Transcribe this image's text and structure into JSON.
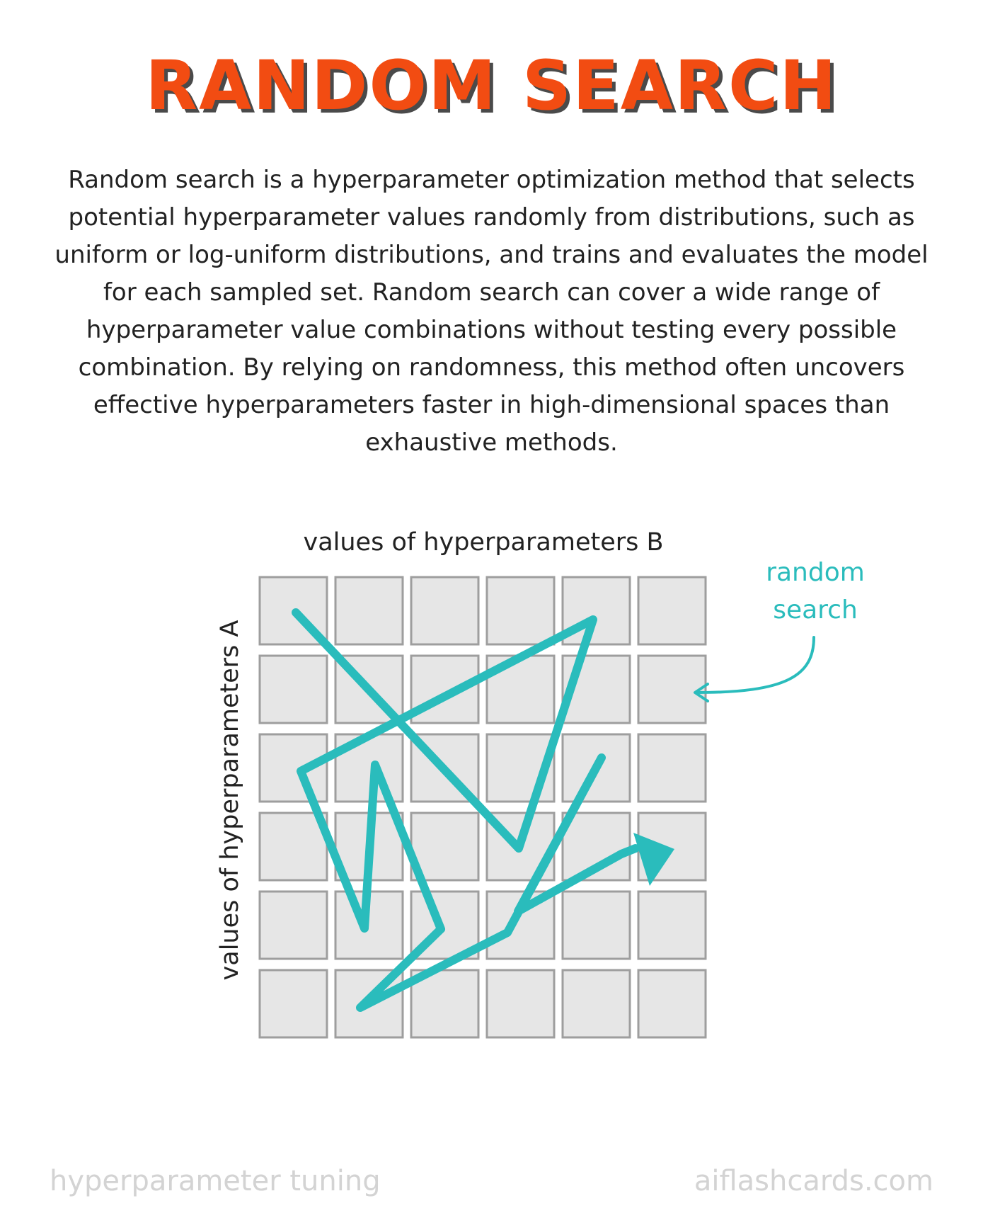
{
  "title": "RANDOM SEARCH",
  "description": "Random search is a hyperparameter optimization method that selects potential hyperparameter values randomly from distributions, such as uniform or log-uniform distributions, and trains and evaluates the model for each sampled set. Random search can cover a wide range of hyperparameter value combinations without testing every possible combination. By relying on randomness, this method often uncovers effective hyperparameters faster in high-dimensional spaces than exhaustive methods.",
  "diagram": {
    "x_axis_label": "values of hyperparameters B",
    "y_axis_label": "values of hyperparameters A",
    "annotation_line1": "random",
    "annotation_line2": "search",
    "grid_rows": 6,
    "grid_cols": 6
  },
  "colors": {
    "title": "#f24c12",
    "title_shadow": "#4a4a4a",
    "path": "#2abcbc",
    "cell_fill": "#e6e6e6",
    "cell_stroke": "#9e9e9e",
    "footer": "#d3d3d3"
  },
  "footer": {
    "topic": "hyperparameter tuning",
    "site": "aiflashcards.com"
  }
}
